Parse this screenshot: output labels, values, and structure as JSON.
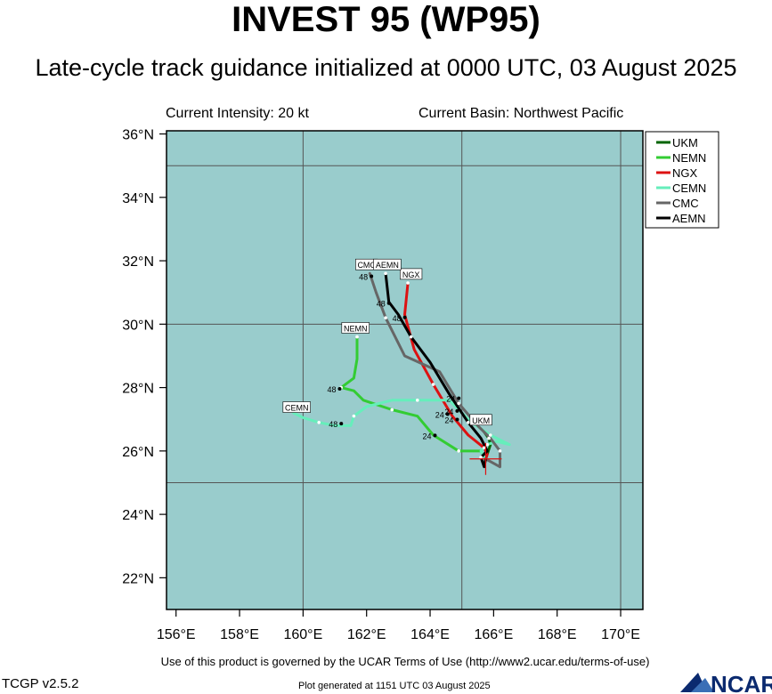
{
  "header": {
    "title": "INVEST 95 (WP95)",
    "subtitle": "Late-cycle track guidance initialized at 0000 UTC, 03 August 2025",
    "current_intensity": "Current Intensity: 20 kt",
    "current_basin": "Current Basin: Northwest Pacific"
  },
  "footer": {
    "terms": "Use of this product is governed by the UCAR Terms of Use (http://www2.ucar.edu/terms-of-use)",
    "version": "TCGP v2.5.2",
    "generated": "Plot generated at 1151 UTC   03 August 2025",
    "logo_text": "NCAR"
  },
  "map": {
    "lon_range": [
      155.7,
      170.7
    ],
    "lat_range": [
      21.0,
      36.1
    ],
    "lon_ticks": [
      "156°E",
      "158°E",
      "160°E",
      "162°E",
      "164°E",
      "166°E",
      "168°E",
      "170°E"
    ],
    "lon_tick_values": [
      156,
      158,
      160,
      162,
      164,
      166,
      168,
      170
    ],
    "lat_ticks": [
      "22°N",
      "24°N",
      "26°N",
      "28°N",
      "30°N",
      "32°N",
      "34°N",
      "36°N"
    ],
    "lat_tick_values": [
      22,
      24,
      26,
      28,
      30,
      32,
      34,
      36
    ],
    "grid_lon": [
      160,
      165,
      170
    ],
    "grid_lat": [
      25,
      30,
      35
    ],
    "ocean_color": "#99cccc",
    "grid_color": "#555555",
    "current_position": [
      165.75,
      25.75
    ],
    "legend_placement": "top-right"
  },
  "chart_data": {
    "type": "track-map",
    "series": [
      {
        "name": "UKM",
        "color": "#006400",
        "points": [
          [
            165.75,
            25.75
          ],
          [
            165.9,
            26.2
          ],
          [
            165.85,
            26.4
          ],
          [
            165.7,
            26.6
          ]
        ],
        "end_label": "UKM",
        "end_label_pos": [
          165.6,
          26.9
        ]
      },
      {
        "name": "NEMN",
        "color": "#33cc33",
        "points": [
          [
            165.75,
            25.75
          ],
          [
            165.6,
            26.0
          ],
          [
            164.9,
            26.0
          ],
          [
            164.1,
            26.5
          ],
          [
            163.6,
            27.1
          ],
          [
            162.8,
            27.3
          ],
          [
            161.9,
            27.6
          ],
          [
            161.6,
            27.9
          ],
          [
            161.2,
            28.0
          ],
          [
            161.6,
            28.3
          ],
          [
            161.7,
            28.9
          ],
          [
            161.7,
            29.6
          ]
        ],
        "end_label": "NEMN",
        "end_label_pos": [
          161.65,
          29.8
        ],
        "tau_labels": [
          {
            "text": "24",
            "pos": [
              163.9,
              26.38
            ]
          },
          {
            "text": "48",
            "pos": [
              160.9,
              27.85
            ]
          }
        ]
      },
      {
        "name": "NGX",
        "color": "#dd1111",
        "points": [
          [
            165.75,
            25.75
          ],
          [
            165.8,
            25.9
          ],
          [
            165.7,
            26.1
          ],
          [
            165.2,
            26.5
          ],
          [
            164.7,
            27.1
          ],
          [
            164.1,
            28.1
          ],
          [
            163.5,
            29.2
          ],
          [
            163.2,
            30.3
          ],
          [
            163.3,
            31.3
          ]
        ],
        "end_label": "NGX",
        "end_label_pos": [
          163.4,
          31.5
        ],
        "tau_labels": [
          {
            "text": "24",
            "pos": [
              164.6,
              26.88
            ]
          },
          {
            "text": "48",
            "pos": [
              162.95,
              30.1
            ]
          }
        ]
      },
      {
        "name": "CEMN",
        "color": "#66eebb",
        "points": [
          [
            165.75,
            25.75
          ],
          [
            165.6,
            26.0
          ],
          [
            165.8,
            26.2
          ],
          [
            166.1,
            26.3
          ],
          [
            166.5,
            26.2
          ],
          [
            165.9,
            26.5
          ],
          [
            165.3,
            26.9
          ],
          [
            164.6,
            27.6
          ],
          [
            163.6,
            27.6
          ],
          [
            162.8,
            27.6
          ],
          [
            162.0,
            27.4
          ],
          [
            161.6,
            27.1
          ],
          [
            161.5,
            26.8
          ],
          [
            161.0,
            26.8
          ],
          [
            160.5,
            26.9
          ],
          [
            160.0,
            27.05
          ],
          [
            159.7,
            27.2
          ]
        ],
        "end_label": "CEMN",
        "end_label_pos": [
          159.8,
          27.3
        ],
        "tau_labels": [
          {
            "text": "24",
            "pos": [
              164.3,
              27.05
            ]
          },
          {
            "text": "48",
            "pos": [
              160.95,
              26.75
            ]
          }
        ]
      },
      {
        "name": "CMC",
        "color": "#666666",
        "points": [
          [
            165.75,
            25.75
          ],
          [
            166.2,
            25.5
          ],
          [
            166.2,
            26.0
          ],
          [
            165.9,
            26.4
          ],
          [
            165.5,
            26.8
          ],
          [
            164.9,
            27.5
          ],
          [
            164.3,
            28.5
          ],
          [
            163.2,
            29.0
          ],
          [
            162.6,
            30.2
          ],
          [
            162.3,
            31.0
          ],
          [
            162.1,
            31.6
          ]
        ],
        "end_label": "CMC",
        "end_label_pos": [
          162.0,
          31.8
        ],
        "tau_labels": [
          {
            "text": "24",
            "pos": [
              164.6,
              27.15
            ]
          },
          {
            "text": "48",
            "pos": [
              161.9,
              31.4
            ]
          }
        ]
      },
      {
        "name": "AEMN",
        "color": "#000000",
        "points": [
          [
            165.75,
            25.75
          ],
          [
            165.7,
            25.5
          ],
          [
            165.6,
            25.8
          ],
          [
            165.8,
            26.0
          ],
          [
            165.6,
            26.4
          ],
          [
            165.2,
            26.9
          ],
          [
            164.6,
            27.8
          ],
          [
            164.0,
            28.8
          ],
          [
            163.4,
            29.6
          ],
          [
            163.0,
            30.3
          ],
          [
            162.7,
            30.7
          ],
          [
            162.6,
            31.6
          ]
        ],
        "end_label": "AEMN",
        "end_label_pos": [
          162.65,
          31.8
        ],
        "tau_labels": [
          {
            "text": "24",
            "pos": [
              164.65,
              27.55
            ]
          },
          {
            "text": "48",
            "pos": [
              162.45,
              30.55
            ]
          }
        ]
      }
    ]
  }
}
